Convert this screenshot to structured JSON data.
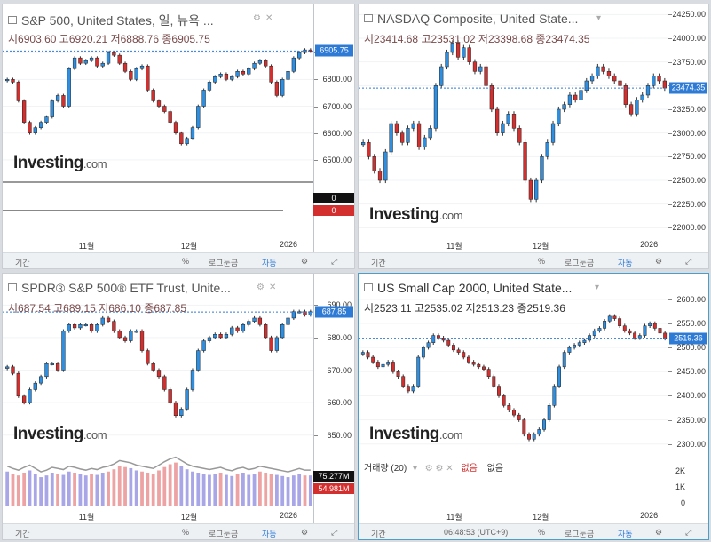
{
  "panels": [
    {
      "id": "sp500",
      "title": "S&P 500, United States, 일, 뉴욕 ...",
      "ohlc": {
        "open_label": "시",
        "open": "6903.60",
        "high_label": "고",
        "high": "6920.21",
        "low_label": "저",
        "low": "6888.76",
        "close_label": "종",
        "close": "6905.75"
      },
      "price_badge": "6905.75",
      "y_ticks": [
        "6900.00",
        "6800.00",
        "6700.00",
        "6600.00",
        "6500.00"
      ],
      "x_ticks": [
        "11월",
        "12월",
        "2026"
      ],
      "sub_badges": [
        "0",
        "0"
      ],
      "footer": {
        "period": "기간",
        "percent": "%",
        "log": "로그눈금",
        "auto": "자동"
      }
    },
    {
      "id": "nasdaq",
      "title": "NASDAQ Composite, United State...",
      "ohlc": {
        "open_label": "시",
        "open": "23414.68",
        "high_label": "고",
        "high": "23531.02",
        "low_label": "저",
        "low": "23398.68",
        "close_label": "종",
        "close": "23474.35"
      },
      "price_badge": "23474.35",
      "y_ticks": [
        "24250.00",
        "24000.00",
        "23750.00",
        "23500.00",
        "23250.00",
        "23000.00",
        "22750.00",
        "22500.00",
        "22250.00",
        "22000.00"
      ],
      "x_ticks": [
        "11월",
        "12월",
        "2026"
      ],
      "footer": {
        "period": "기간",
        "percent": "%",
        "log": "로그눈금",
        "auto": "자동"
      }
    },
    {
      "id": "spdr",
      "title": "SPDR® S&P 500® ETF Trust, Unite...",
      "ohlc": {
        "open_label": "시",
        "open": "687.54",
        "high_label": "고",
        "high": "689.15",
        "low_label": "저",
        "low": "686.10",
        "close_label": "종",
        "close": "687.85"
      },
      "price_badge": "687.85",
      "y_ticks": [
        "690.00",
        "680.00",
        "670.00",
        "660.00",
        "650.00"
      ],
      "x_ticks": [
        "11월",
        "12월",
        "2026"
      ],
      "sub_badges": [
        "75.277M",
        "54.981M"
      ],
      "footer": {
        "period": "기간",
        "percent": "%",
        "log": "로그눈금",
        "auto": "자동"
      }
    },
    {
      "id": "russell",
      "title": "US Small Cap 2000, United State...",
      "ohlc": {
        "open_label": "시",
        "open": "2523.11",
        "high_label": "고",
        "high": "2535.02",
        "low_label": "저",
        "low": "2513.23",
        "close_label": "종",
        "close": "2519.36"
      },
      "price_badge": "2519.36",
      "y_ticks": [
        "2600.00",
        "2550.00",
        "2500.00",
        "2450.00",
        "2400.00",
        "2350.00",
        "2300.00"
      ],
      "vol_ticks": [
        "2K",
        "1K",
        "0"
      ],
      "x_ticks": [
        "11월",
        "12월",
        "2026"
      ],
      "volume_legend": {
        "label": "거래량 (20)",
        "v1": "없음",
        "v2": "없음"
      },
      "footer": {
        "period": "기간",
        "time": "06:48:53 (UTC+9)",
        "percent": "%",
        "log": "로그눈금",
        "auto": "자동"
      }
    }
  ],
  "logo": {
    "main": "Investing",
    "suffix": ".com"
  },
  "colors": {
    "up": "#2e8ee0",
    "down": "#d32f2f",
    "badge": "#2e7bd6",
    "volume_up": "#a9a6e8",
    "volume_down": "#eda3a3"
  },
  "chart_data": [
    {
      "type": "candlestick",
      "title": "S&P 500, United States, 일, 뉴욕 ...",
      "ylim": [
        6450,
        6960
      ],
      "last": 6905.75,
      "closes": [
        6800,
        6790,
        6720,
        6640,
        6600,
        6620,
        6640,
        6660,
        6720,
        6740,
        6700,
        6840,
        6880,
        6860,
        6870,
        6880,
        6850,
        6860,
        6900,
        6890,
        6860,
        6830,
        6800,
        6840,
        6850,
        6760,
        6720,
        6700,
        6680,
        6640,
        6600,
        6560,
        6580,
        6620,
        6700,
        6760,
        6790,
        6810,
        6820,
        6800,
        6810,
        6830,
        6820,
        6840,
        6860,
        6870,
        6850,
        6790,
        6740,
        6800,
        6830,
        6880,
        6900,
        6910,
        6905
      ]
    },
    {
      "type": "candlestick",
      "title": "NASDAQ Composite, United State...",
      "ylim": [
        21900,
        24300
      ],
      "last": 23474.35,
      "closes": [
        22900,
        22750,
        22600,
        22500,
        22800,
        23100,
        23000,
        22900,
        23050,
        23100,
        22850,
        22950,
        23050,
        23500,
        23700,
        23850,
        23950,
        23800,
        23900,
        23750,
        23650,
        23700,
        23500,
        23250,
        23000,
        23100,
        23200,
        23050,
        22900,
        22500,
        22300,
        22500,
        22750,
        22900,
        23100,
        23250,
        23300,
        23400,
        23350,
        23450,
        23550,
        23600,
        23700,
        23650,
        23600,
        23550,
        23500,
        23300,
        23200,
        23350,
        23400,
        23500,
        23600,
        23550,
        23474
      ]
    },
    {
      "type": "candlestick",
      "title": "SPDR® S&P 500® ETF Trust, Unite...",
      "ylim": [
        645,
        692
      ],
      "last": 687.85,
      "closes": [
        671,
        669,
        662,
        660,
        664,
        666,
        668,
        672,
        672,
        670,
        682,
        684,
        683,
        684,
        684,
        682,
        684,
        686,
        685,
        682,
        680,
        679,
        682,
        682,
        676,
        672,
        670,
        668,
        664,
        660,
        656,
        658,
        664,
        670,
        676,
        679,
        680,
        681,
        680,
        681,
        683,
        682,
        684,
        685,
        686,
        684,
        680,
        676,
        680,
        684,
        686,
        688,
        688,
        687,
        688
      ],
      "volume": [
        62,
        58,
        55,
        60,
        64,
        58,
        52,
        55,
        60,
        58,
        56,
        62,
        60,
        57,
        55,
        58,
        56,
        60,
        62,
        66,
        72,
        70,
        68,
        64,
        62,
        60,
        58,
        64,
        70,
        75,
        78,
        72,
        66,
        62,
        60,
        58,
        56,
        58,
        60,
        56,
        54,
        58,
        60,
        56,
        58,
        62,
        60,
        58,
        56,
        54,
        52,
        55,
        58,
        55,
        55
      ]
    },
    {
      "type": "candlestick",
      "title": "US Small Cap 2000, United State...",
      "ylim": [
        2270,
        2620
      ],
      "last": 2519.36,
      "closes": [
        2490,
        2480,
        2470,
        2460,
        2465,
        2470,
        2450,
        2440,
        2420,
        2410,
        2420,
        2480,
        2500,
        2510,
        2525,
        2520,
        2515,
        2505,
        2495,
        2490,
        2480,
        2470,
        2465,
        2460,
        2455,
        2440,
        2420,
        2400,
        2380,
        2370,
        2360,
        2350,
        2320,
        2310,
        2320,
        2330,
        2350,
        2380,
        2420,
        2460,
        2490,
        2500,
        2505,
        2510,
        2515,
        2525,
        2535,
        2540,
        2555,
        2565,
        2560,
        2545,
        2535,
        2530,
        2520,
        2525,
        2545,
        2550,
        2540,
        2530,
        2519
      ]
    }
  ]
}
